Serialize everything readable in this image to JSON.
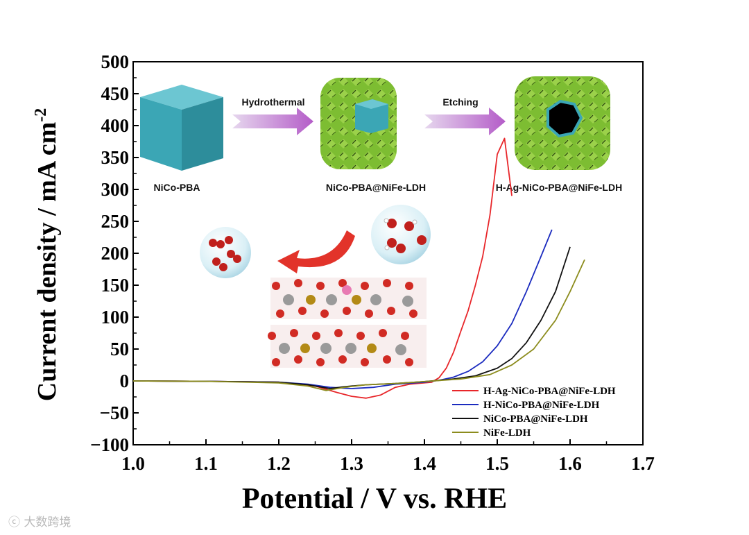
{
  "chart_data": {
    "type": "line",
    "xlabel": "Potential / V vs. RHE",
    "ylabel": "Current density / mA cm",
    "ylabel_superscript": "-2",
    "xlim": [
      1.0,
      1.7
    ],
    "ylim": [
      -100,
      500
    ],
    "xticks": [
      "1.0",
      "1.1",
      "1.2",
      "1.3",
      "1.4",
      "1.5",
      "1.6",
      "1.7"
    ],
    "yticks": [
      "500",
      "450",
      "400",
      "350",
      "300",
      "250",
      "200",
      "150",
      "100",
      "50",
      "0",
      "−50",
      "−100"
    ],
    "legend_position": "bottom-right",
    "series": [
      {
        "name": "H-Ag-NiCo-PBA@NiFe-LDH",
        "color": "#e8262a",
        "points": [
          [
            1.0,
            0
          ],
          [
            1.1,
            -0.5
          ],
          [
            1.2,
            -2
          ],
          [
            1.25,
            -8
          ],
          [
            1.28,
            -18
          ],
          [
            1.3,
            -24
          ],
          [
            1.32,
            -27
          ],
          [
            1.34,
            -22
          ],
          [
            1.36,
            -10
          ],
          [
            1.38,
            -5
          ],
          [
            1.41,
            -2
          ],
          [
            1.42,
            5
          ],
          [
            1.43,
            20
          ],
          [
            1.44,
            45
          ],
          [
            1.45,
            78
          ],
          [
            1.46,
            110
          ],
          [
            1.47,
            150
          ],
          [
            1.48,
            195
          ],
          [
            1.49,
            260
          ],
          [
            1.5,
            355
          ],
          [
            1.51,
            380
          ],
          [
            1.52,
            290
          ]
        ]
      },
      {
        "name": "H-NiCo-PBA@NiFe-LDH",
        "color": "#1b2bbf",
        "points": [
          [
            1.0,
            0
          ],
          [
            1.1,
            -0.5
          ],
          [
            1.2,
            -2
          ],
          [
            1.24,
            -5
          ],
          [
            1.27,
            -10
          ],
          [
            1.3,
            -12
          ],
          [
            1.33,
            -10
          ],
          [
            1.36,
            -5
          ],
          [
            1.4,
            -2
          ],
          [
            1.42,
            1
          ],
          [
            1.44,
            6
          ],
          [
            1.46,
            15
          ],
          [
            1.48,
            30
          ],
          [
            1.5,
            55
          ],
          [
            1.52,
            90
          ],
          [
            1.54,
            140
          ],
          [
            1.56,
            195
          ],
          [
            1.575,
            237
          ]
        ]
      },
      {
        "name": "NiCo-PBA@NiFe-LDH",
        "color": "#111111",
        "points": [
          [
            1.0,
            0
          ],
          [
            1.1,
            -0.5
          ],
          [
            1.2,
            -2
          ],
          [
            1.24,
            -6
          ],
          [
            1.27,
            -12
          ],
          [
            1.29,
            -9
          ],
          [
            1.32,
            -6
          ],
          [
            1.36,
            -4
          ],
          [
            1.4,
            -1
          ],
          [
            1.44,
            3
          ],
          [
            1.47,
            8
          ],
          [
            1.5,
            20
          ],
          [
            1.52,
            35
          ],
          [
            1.54,
            60
          ],
          [
            1.56,
            95
          ],
          [
            1.58,
            140
          ],
          [
            1.6,
            210
          ]
        ]
      },
      {
        "name": "NiFe-LDH",
        "color": "#8c8c1d",
        "points": [
          [
            1.0,
            0
          ],
          [
            1.1,
            -0.5
          ],
          [
            1.2,
            -3
          ],
          [
            1.24,
            -8
          ],
          [
            1.265,
            -15
          ],
          [
            1.29,
            -10
          ],
          [
            1.32,
            -6
          ],
          [
            1.36,
            -4
          ],
          [
            1.4,
            -1
          ],
          [
            1.45,
            3
          ],
          [
            1.49,
            10
          ],
          [
            1.52,
            25
          ],
          [
            1.55,
            50
          ],
          [
            1.58,
            95
          ],
          [
            1.6,
            140
          ],
          [
            1.62,
            190
          ]
        ]
      }
    ]
  },
  "schematic": {
    "step1_label": "NiCo-PBA",
    "step2_label": "NiCo-PBA@NiFe-LDH",
    "step3_label": "H-Ag-NiCo-PBA@NiFe-LDH",
    "arrow1_label": "Hydrothermal",
    "arrow2_label": "Etching",
    "colors": {
      "cube_face": "#3ba6b5",
      "ldh_green": "#7dbd32",
      "arrow_purple": "#b45cc8"
    }
  },
  "watermark": "大数跨境"
}
